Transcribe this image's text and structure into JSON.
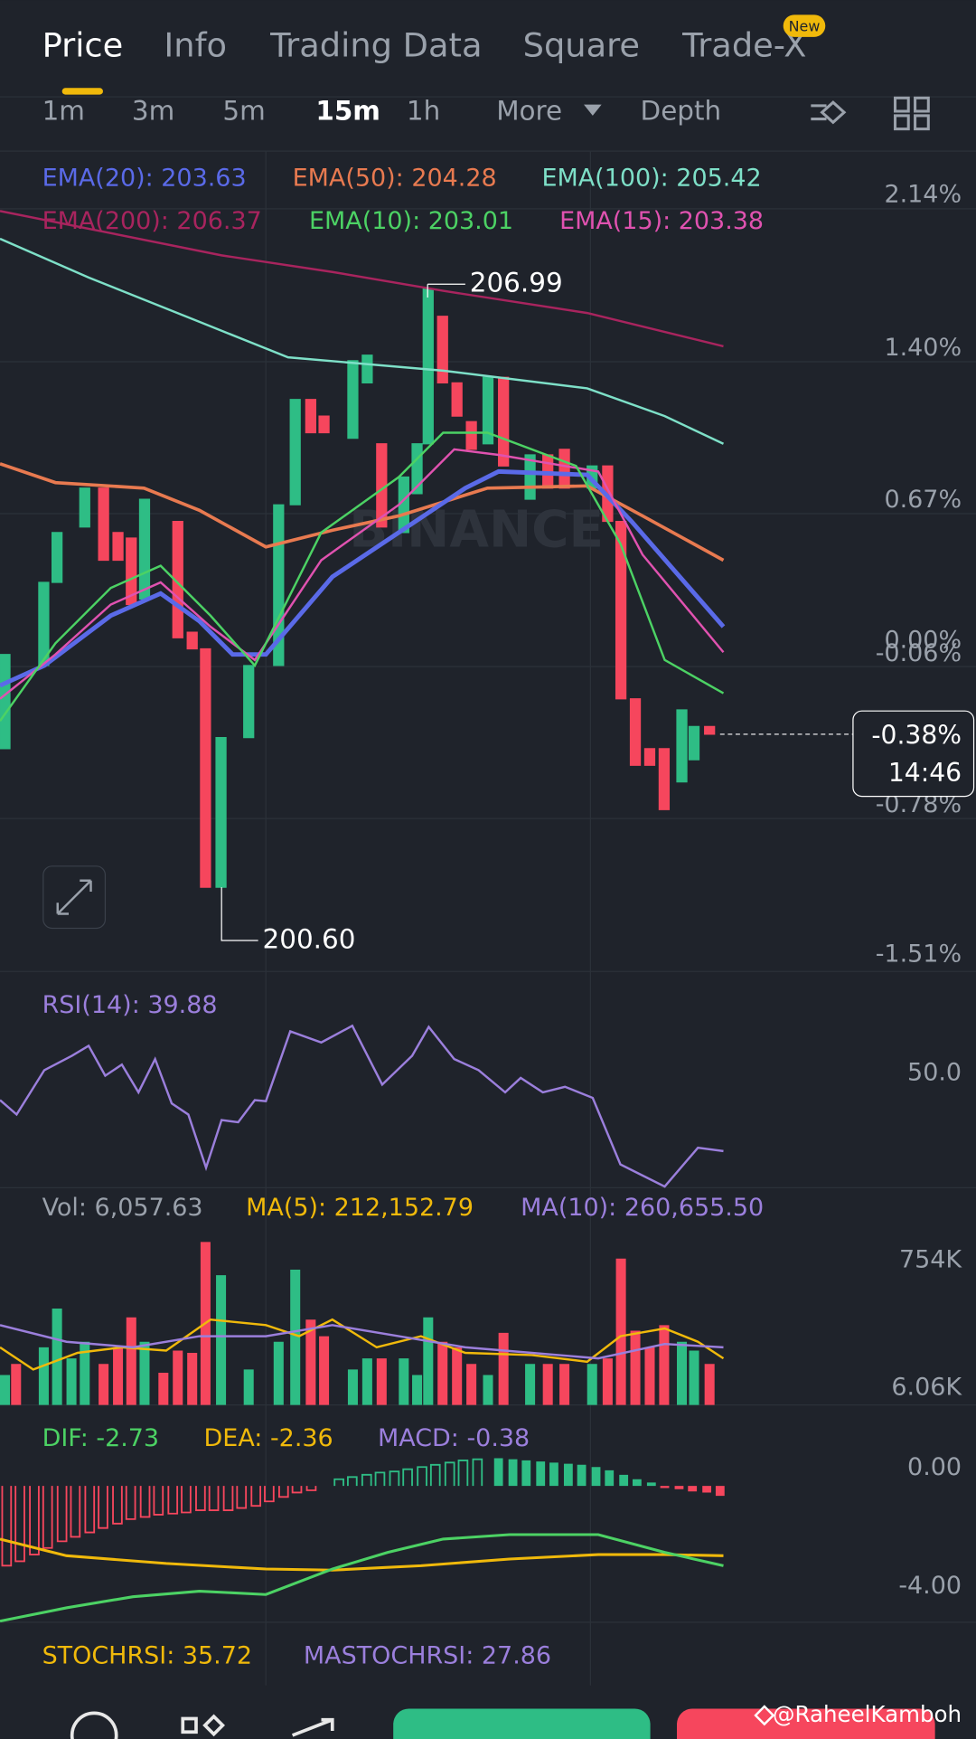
{
  "tabs": [
    "Price",
    "Info",
    "Trading Data",
    "Square",
    "Trade-X"
  ],
  "badge": "New",
  "intervals": [
    "1m",
    "3m",
    "5m",
    "15m",
    "1h",
    "More",
    "Depth"
  ],
  "ema_legend": [
    "EMA(20): 203.63",
    "EMA(50): 204.28",
    "EMA(100): 205.42",
    "EMA(200): 206.37",
    "EMA(10): 203.01",
    "EMA(15): 203.38"
  ],
  "price_axis": [
    "2.14%",
    "1.40%",
    "0.67%",
    "0.00%",
    "-0.06%",
    "-0.78%",
    "-1.51%"
  ],
  "current": {
    "change": "-0.38%",
    "countdown": "14:46"
  },
  "high": "206.99",
  "low": "200.60",
  "watermark": "BINANCE",
  "rsi": {
    "label": "RSI(14): 39.88",
    "axis": "50.0"
  },
  "volume": {
    "labels": [
      "Vol: 6,057.63",
      "MA(5): 212,152.79",
      "MA(10): 260,655.50"
    ],
    "axis": [
      "754K",
      "6.06K"
    ]
  },
  "macd": {
    "labels": [
      "DIF: -2.73",
      "DEA: -2.36",
      "MACD: -0.38"
    ],
    "axis": [
      "0.00",
      "-4.00"
    ]
  },
  "stochrsi": {
    "labels": [
      "STOCHRSI: 35.72",
      "MASTOCHRSI: 27.86"
    ]
  },
  "credit": "@RaheelKamboh"
}
